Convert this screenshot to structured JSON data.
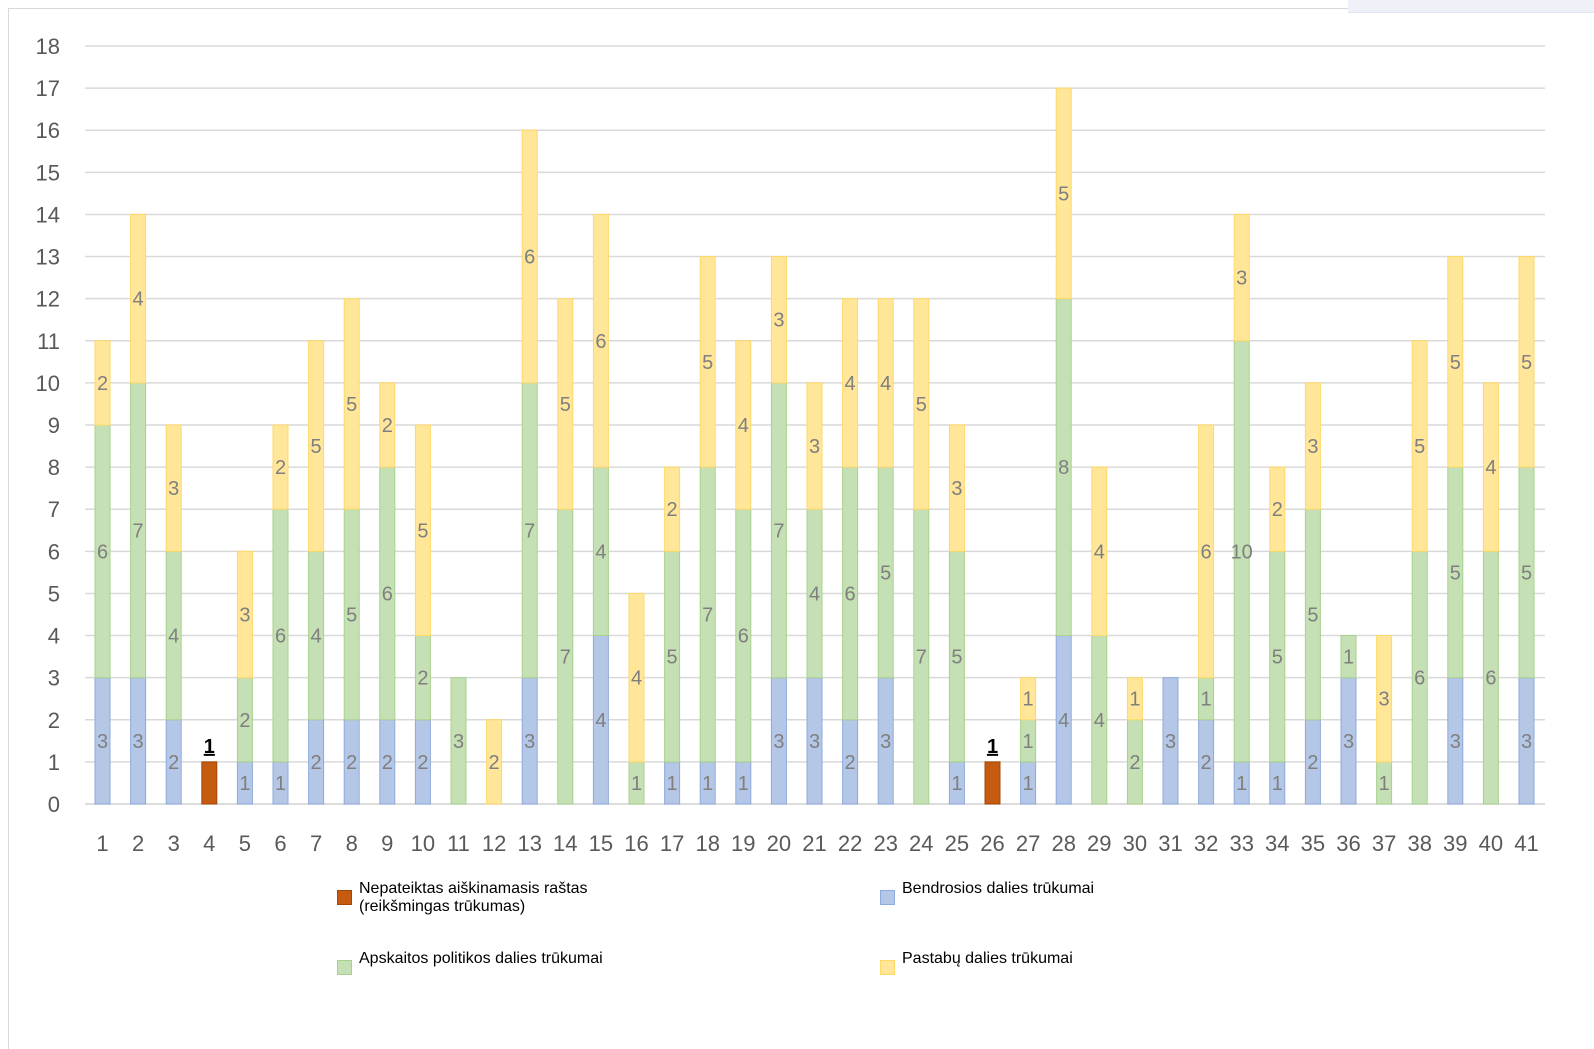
{
  "chart_data": {
    "type": "bar",
    "stacked": true,
    "title": "",
    "xlabel": "",
    "ylabel": "",
    "ylim": [
      0,
      18
    ],
    "yticks": [
      0,
      1,
      2,
      3,
      4,
      5,
      6,
      7,
      8,
      9,
      10,
      11,
      12,
      13,
      14,
      15,
      16,
      17,
      18
    ],
    "grid": true,
    "legend_position": "bottom",
    "categories": [
      "1",
      "2",
      "3",
      "4",
      "5",
      "6",
      "7",
      "8",
      "9",
      "10",
      "11",
      "12",
      "13",
      "14",
      "15",
      "16",
      "17",
      "18",
      "19",
      "20",
      "21",
      "22",
      "23",
      "24",
      "25",
      "26",
      "27",
      "28",
      "29",
      "30",
      "31",
      "32",
      "33",
      "34",
      "35",
      "36",
      "37",
      "38",
      "39",
      "40",
      "41"
    ],
    "series": [
      {
        "name": "Nepateiktas aiškinamasis raštas\n(reikšmingas trūkumas)",
        "color": "#c55a11",
        "values": [
          0,
          0,
          0,
          1,
          0,
          0,
          0,
          0,
          0,
          0,
          0,
          0,
          0,
          0,
          0,
          0,
          0,
          0,
          0,
          0,
          0,
          0,
          0,
          0,
          0,
          1,
          0,
          0,
          0,
          0,
          0,
          0,
          0,
          0,
          0,
          0,
          0,
          0,
          0,
          0,
          0
        ]
      },
      {
        "name": "Bendrosios dalies trūkumai",
        "color": "#b4c7e7",
        "values": [
          3,
          3,
          2,
          0,
          1,
          1,
          2,
          2,
          2,
          2,
          0,
          0,
          3,
          0,
          4,
          0,
          1,
          1,
          1,
          3,
          3,
          2,
          3,
          0,
          1,
          0,
          1,
          4,
          0,
          0,
          3,
          2,
          1,
          1,
          2,
          3,
          0,
          0,
          3,
          0,
          3
        ]
      },
      {
        "name": "Apskaitos politikos dalies trūkumai",
        "color": "#c5e0b4",
        "values": [
          6,
          7,
          4,
          0,
          2,
          6,
          4,
          5,
          6,
          2,
          3,
          0,
          7,
          7,
          4,
          1,
          5,
          7,
          6,
          7,
          4,
          6,
          5,
          7,
          5,
          0,
          1,
          8,
          4,
          2,
          0,
          1,
          10,
          5,
          5,
          1,
          1,
          6,
          5,
          6,
          5
        ]
      },
      {
        "name": "Pastabų dalies trūkumai",
        "color": "#ffe699",
        "values": [
          2,
          4,
          3,
          0,
          3,
          2,
          5,
          5,
          2,
          5,
          0,
          2,
          6,
          5,
          6,
          4,
          2,
          5,
          4,
          3,
          3,
          4,
          4,
          5,
          3,
          0,
          1,
          5,
          4,
          1,
          0,
          6,
          3,
          2,
          3,
          0,
          3,
          5,
          5,
          4,
          5
        ]
      }
    ]
  }
}
